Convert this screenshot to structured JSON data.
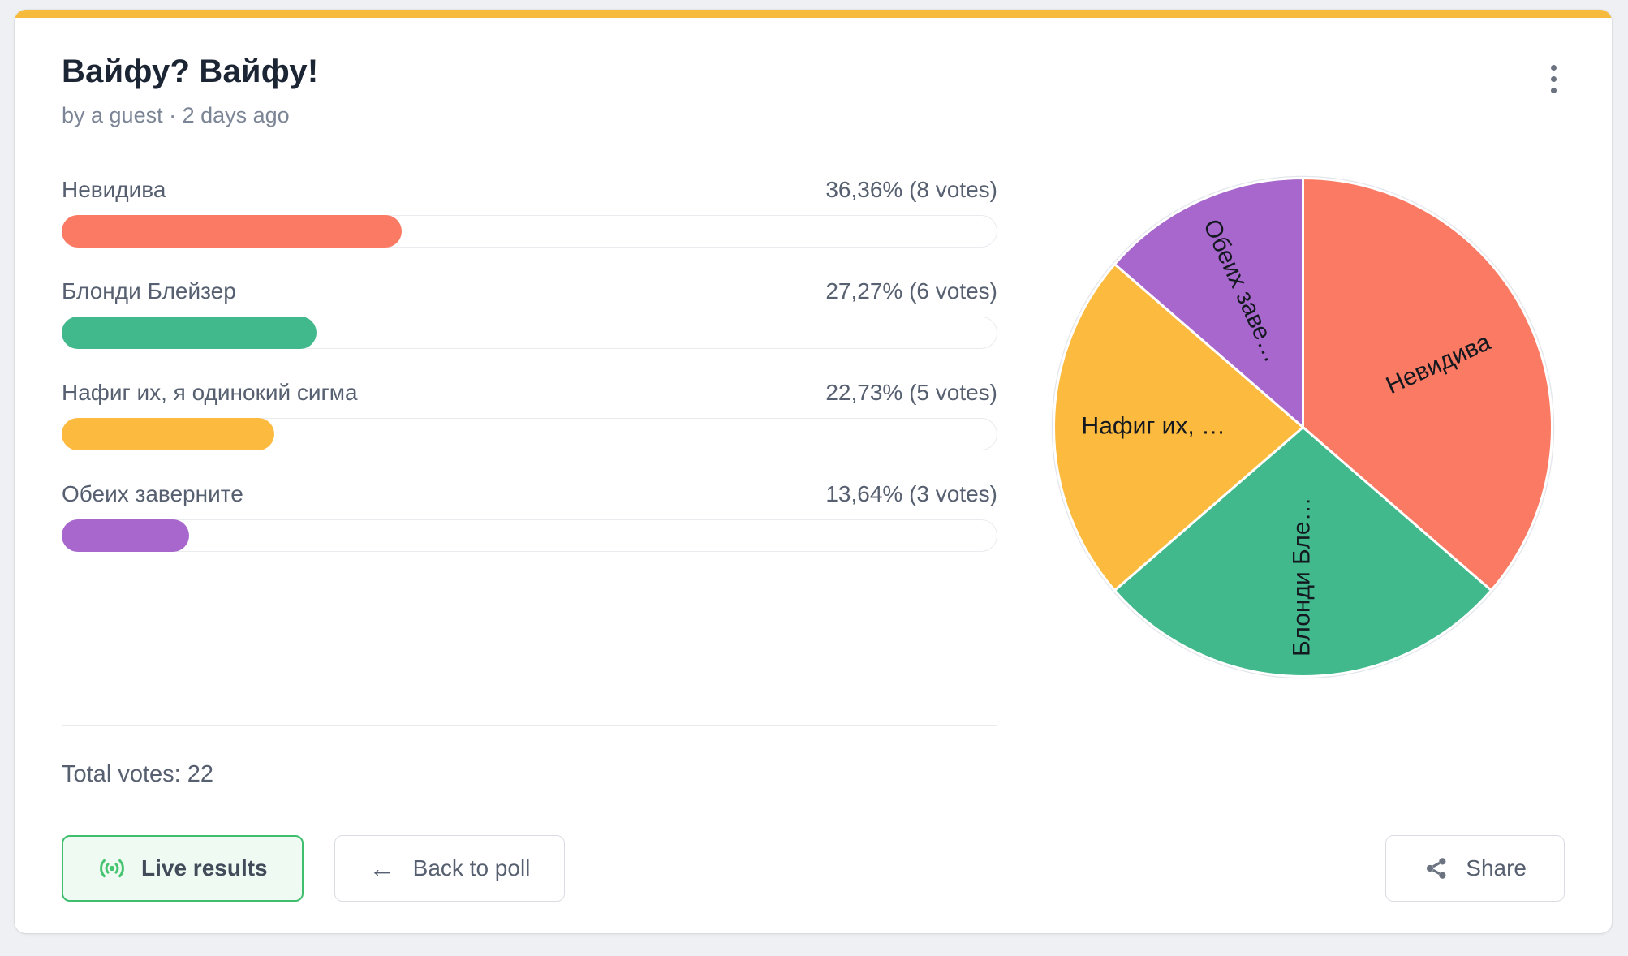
{
  "card": {
    "accent_color": "#f6ba3d"
  },
  "header": {
    "title": "Вайфу? Вайфу!",
    "byline": "by a guest · 2 days ago"
  },
  "poll": {
    "options": [
      {
        "label": "Невидива",
        "result": "36,36% (8 votes)",
        "pct": 36.36,
        "color": "#fa7a64"
      },
      {
        "label": "Блонди Блейзер",
        "result": "27,27% (6 votes)",
        "pct": 27.27,
        "color": "#41b98c"
      },
      {
        "label": "Нафиг их, я одинокий сигма",
        "result": "22,73% (5 votes)",
        "pct": 22.73,
        "color": "#fcba3e"
      },
      {
        "label": "Обеих заверните",
        "result": "13,64% (3 votes)",
        "pct": 13.64,
        "color": "#a867cd"
      }
    ],
    "total_label": "Total votes: 22"
  },
  "chart_data": {
    "type": "pie",
    "categories": [
      "Невидива",
      "Блонди Блейзер",
      "Нафиг их, я одинокий сигма",
      "Обеих заверните"
    ],
    "values": [
      8,
      6,
      5,
      3
    ],
    "percentages": [
      36.36,
      27.27,
      22.73,
      13.64
    ],
    "labels_displayed": [
      "Невидива",
      "Блонди Бле…",
      "Нафиг их, …",
      "Обеих заве…"
    ],
    "colors": [
      "#fa7a64",
      "#41b98c",
      "#fcba3e",
      "#a867cd"
    ],
    "start_angle_deg": 0,
    "direction": "clockwise",
    "legend": "none",
    "ring_color": "#e3e6eb",
    "separator_color": "#ffffff"
  },
  "footer": {
    "live_button": "Live results",
    "back_button": "Back to poll",
    "share_button": "Share",
    "back_arrow": "←"
  }
}
